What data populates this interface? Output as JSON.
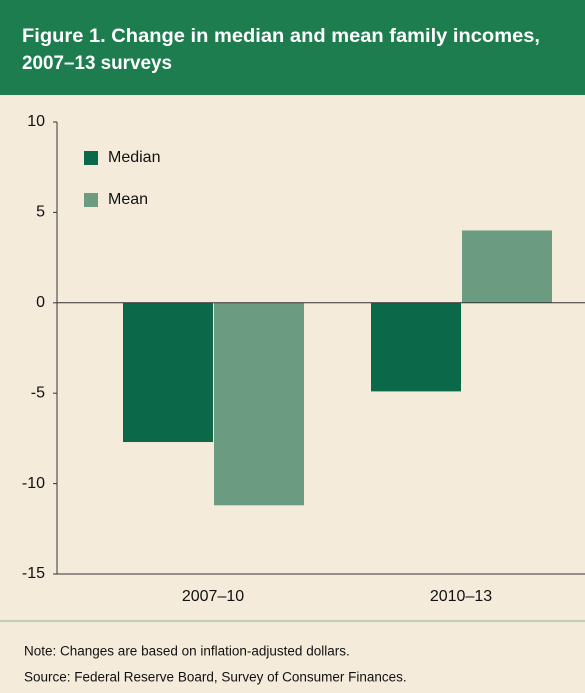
{
  "chart_data": {
    "type": "bar",
    "title": [
      "Figure 1. Change in median and mean family incomes,",
      "2007–13 surveys"
    ],
    "categories": [
      "2007–10",
      "2010–13"
    ],
    "series": [
      {
        "name": "Median",
        "color": "#0b6848",
        "values": [
          -7.7,
          -4.9
        ]
      },
      {
        "name": "Mean",
        "color": "#6b9c82",
        "values": [
          -11.2,
          4.0
        ]
      }
    ],
    "ylim": [
      -15,
      10
    ],
    "yticks": [
      10,
      5,
      0,
      -5,
      -10,
      -15
    ],
    "legend": "upper left",
    "notes": [
      "Note: Changes are based on inflation-adjusted dollars.",
      "Source: Federal Reserve Board, Survey of Consumer Finances."
    ]
  }
}
